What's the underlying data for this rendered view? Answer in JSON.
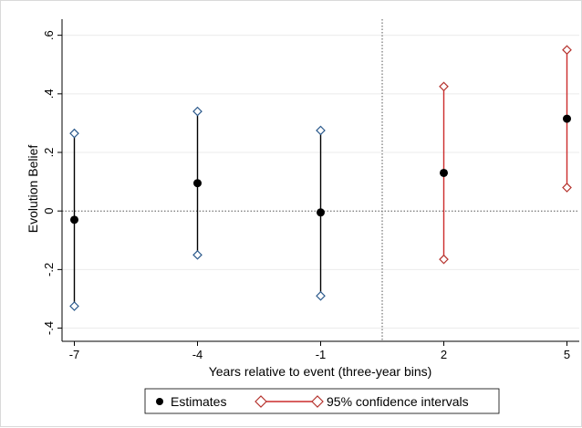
{
  "chart_data": {
    "type": "scatter",
    "xlabel": "Years relative to event (three-year bins)",
    "ylabel": "Evolution Belief",
    "x_ticks": [
      -7,
      -4,
      -1,
      2,
      5
    ],
    "x_tick_labels": [
      "-7",
      "-4",
      "-1",
      "2",
      "5"
    ],
    "y_ticks": [
      -0.4,
      -0.2,
      0,
      0.2,
      0.4,
      0.6
    ],
    "y_tick_labels": [
      "-.4",
      "-.2",
      "0",
      ".2",
      ".4",
      ".6"
    ],
    "xlim": [
      -7.3,
      5.3
    ],
    "ylim": [
      -0.445,
      0.655
    ],
    "grid": "horizontal",
    "reference_lines": {
      "horizontal_y": 0,
      "vertical_x": 0.5
    },
    "legend": {
      "position": "bottom",
      "items": [
        "Estimates",
        "95% confidence intervals"
      ]
    },
    "series": [
      {
        "name": "Estimates",
        "x": [
          -7,
          -4,
          -1,
          2,
          5
        ],
        "y": [
          -0.03,
          0.095,
          -0.005,
          0.13,
          0.315
        ]
      },
      {
        "name": "95% confidence intervals",
        "x": [
          -7,
          -4,
          -1,
          2,
          5
        ],
        "lower": [
          -0.325,
          -0.15,
          -0.29,
          -0.165,
          0.08
        ],
        "upper": [
          0.265,
          0.34,
          0.275,
          0.425,
          0.55
        ],
        "colors": [
          "#000000",
          "#000000",
          "#000000",
          "#cc2b2b",
          "#cc2b2b"
        ],
        "marker_colors": [
          "#2c5a8c",
          "#2c5a8c",
          "#2c5a8c",
          "#b5332e",
          "#b5332e"
        ]
      }
    ],
    "colors": {
      "estimate": "#000000",
      "grid": "#ebebeb",
      "reference_line": "#555555",
      "legend_ci": "#cc2b2b",
      "legend_marker": "#b5332e"
    }
  }
}
